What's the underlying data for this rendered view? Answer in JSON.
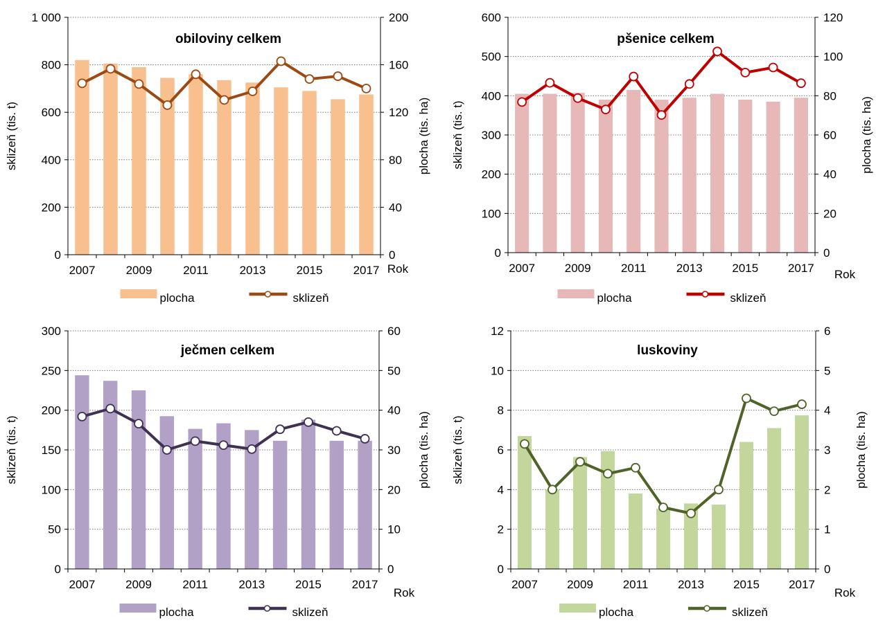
{
  "chart_data": [
    {
      "type": "bar+line",
      "title": "obiloviny  celkem",
      "years": [
        "2007",
        "2008",
        "2009",
        "2010",
        "2011",
        "2012",
        "2013",
        "2014",
        "2015",
        "2016",
        "2017"
      ],
      "x_tick_labels": [
        "2007",
        "2009",
        "2011",
        "2013",
        "2015",
        "2017"
      ],
      "x_unit": "Rok",
      "ylabel_left": "sklizeň (tis. t)",
      "ylabel_right": "plocha (tis. ha)",
      "left_ticks": [
        "0",
        "200",
        "400",
        "600",
        "800",
        "1 000"
      ],
      "right_ticks": [
        "0",
        "40",
        "80",
        "120",
        "160",
        "200"
      ],
      "ylim_left": [
        0,
        1000
      ],
      "ylim_right": [
        0,
        200
      ],
      "series": [
        {
          "name": "plocha",
          "type": "bar",
          "axis": "right",
          "color": "#f9c08f",
          "values": [
            164,
            161,
            158,
            149,
            152,
            147,
            145,
            141,
            138,
            131,
            135
          ]
        },
        {
          "name": "sklizeň",
          "type": "line",
          "axis": "left",
          "color": "#9b4a14",
          "values": [
            722,
            783,
            719,
            630,
            760,
            652,
            688,
            815,
            740,
            752,
            700
          ]
        }
      ],
      "legend": [
        "plocha",
        "sklizeň"
      ],
      "legend_position": "bottom"
    },
    {
      "type": "bar+line",
      "title": "pšenice celkem",
      "years": [
        "2007",
        "2008",
        "2009",
        "2010",
        "2011",
        "2012",
        "2013",
        "2014",
        "2015",
        "2016",
        "2017"
      ],
      "x_tick_labels": [
        "2007",
        "2009",
        "2011",
        "2013",
        "2015",
        "2017"
      ],
      "x_unit": "Rok",
      "ylabel_left": "sklizeň (tis. t)",
      "ylabel_right": "plocha (tis. ha)",
      "left_ticks": [
        "0",
        "100",
        "200",
        "300",
        "400",
        "500",
        "600"
      ],
      "right_ticks": [
        "0",
        "20",
        "40",
        "60",
        "80",
        "100",
        "120"
      ],
      "ylim_left": [
        0,
        600
      ],
      "ylim_right": [
        0,
        120
      ],
      "series": [
        {
          "name": "plocha",
          "type": "bar",
          "axis": "right",
          "color": "#e6b9b8",
          "values": [
            81,
            81,
            81.5,
            78,
            83,
            78,
            79,
            81,
            78,
            77,
            79
          ]
        },
        {
          "name": "sklizeň",
          "type": "line",
          "axis": "left",
          "color": "#c00000",
          "values": [
            384,
            433,
            394,
            365,
            449,
            351,
            430,
            513,
            459,
            472,
            432
          ]
        }
      ],
      "legend": [
        "plocha",
        "sklizeň"
      ],
      "legend_position": "bottom"
    },
    {
      "type": "bar+line",
      "title": "ječmen celkem",
      "years": [
        "2007",
        "2008",
        "2009",
        "2010",
        "2011",
        "2012",
        "2013",
        "2014",
        "2015",
        "2016",
        "2017"
      ],
      "x_tick_labels": [
        "2007",
        "2009",
        "2011",
        "2013",
        "2015",
        "2017"
      ],
      "x_unit": "Rok",
      "ylabel_left": "sklizeň (tis. t)",
      "ylabel_right": "plocha (tis. ha)",
      "left_ticks": [
        "0",
        "50",
        "100",
        "150",
        "200",
        "250",
        "300"
      ],
      "right_ticks": [
        "0",
        "10",
        "20",
        "30",
        "40",
        "50",
        "60"
      ],
      "ylim_left": [
        0,
        300
      ],
      "ylim_right": [
        0,
        60
      ],
      "series": [
        {
          "name": "plocha",
          "type": "bar",
          "axis": "right",
          "color": "#b2a1c7",
          "values": [
            48.8,
            47.4,
            45,
            38.5,
            35.3,
            36.7,
            35,
            32.3,
            37.6,
            32.3,
            32.3
          ]
        },
        {
          "name": "sklizeň",
          "type": "line",
          "axis": "left",
          "color": "#3f3151",
          "values": [
            192,
            202,
            183,
            150,
            161,
            156,
            151,
            176,
            185,
            174,
            164
          ]
        }
      ],
      "legend": [
        "plocha",
        "sklizeň"
      ],
      "legend_position": "bottom"
    },
    {
      "type": "bar+line",
      "title": "luskoviny",
      "years": [
        "2007",
        "2008",
        "2009",
        "2010",
        "2011",
        "2012",
        "2013",
        "2014",
        "2015",
        "2016",
        "2017"
      ],
      "x_tick_labels": [
        "2007",
        "2009",
        "2011",
        "2013",
        "2015",
        "2017"
      ],
      "x_unit": "Rok",
      "ylabel_left": "sklizeň (tis. t)",
      "ylabel_right": "plocha (tis. ha)",
      "left_ticks": [
        "0",
        "2",
        "4",
        "6",
        "8",
        "10",
        "12"
      ],
      "right_ticks": [
        "0",
        "1",
        "2",
        "3",
        "4",
        "5",
        "6"
      ],
      "ylim_left": [
        0,
        12
      ],
      "ylim_right": [
        0,
        6
      ],
      "series": [
        {
          "name": "plocha",
          "type": "bar",
          "axis": "right",
          "color": "#c3d69b",
          "values": [
            3.35,
            2.0,
            2.82,
            2.97,
            1.9,
            1.52,
            1.65,
            1.62,
            3.2,
            3.55,
            3.87
          ]
        },
        {
          "name": "sklizeň",
          "type": "line",
          "axis": "left",
          "color": "#4f6228",
          "values": [
            6.3,
            4.0,
            5.4,
            4.8,
            5.1,
            3.1,
            2.8,
            4.0,
            8.6,
            7.95,
            8.3
          ]
        }
      ],
      "legend": [
        "plocha",
        "sklizeň"
      ],
      "legend_position": "bottom"
    }
  ]
}
